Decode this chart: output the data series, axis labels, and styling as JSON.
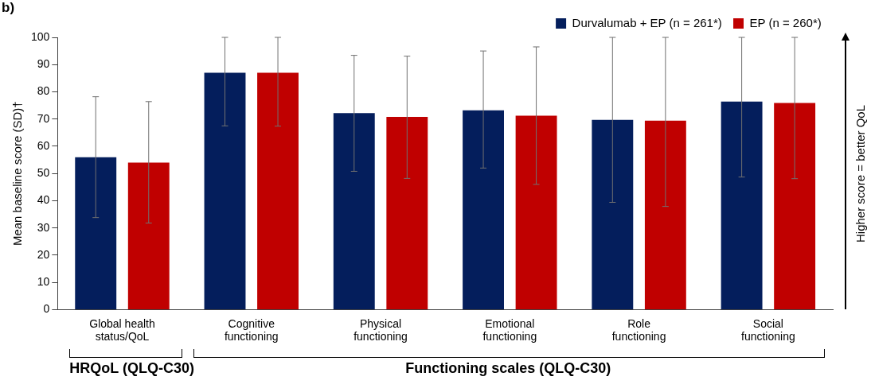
{
  "chart_data": {
    "type": "bar",
    "ylabel": "Mean baseline score (SD)†",
    "categories": [
      "Global health\nstatus/QoL",
      "Cognitive\nfunctioning",
      "Physical\nfunctioning",
      "Emotional\nfunctioning",
      "Role\nfunctioning",
      "Social\nfunctioning"
    ],
    "series": [
      {
        "name": "Durvalumab + EP (n = 261*)",
        "color": "#041e5c",
        "values": [
          56,
          87,
          72.2,
          73.2,
          69.7,
          76.4
        ],
        "errors": [
          [
            33.8,
            78.2
          ],
          [
            67.5,
            100
          ],
          [
            50.8,
            93.4
          ],
          [
            52,
            95
          ],
          [
            39.4,
            100
          ],
          [
            48.7,
            100
          ]
        ]
      },
      {
        "name": "EP (n = 260*)",
        "color": "#c00000",
        "values": [
          54,
          87,
          70.8,
          71.2,
          69.4,
          75.9
        ],
        "errors": [
          [
            31.8,
            76.4
          ],
          [
            67.4,
            100
          ],
          [
            48.2,
            93.1
          ],
          [
            46,
            96.5
          ],
          [
            37.9,
            100
          ],
          [
            48.1,
            100
          ]
        ]
      }
    ],
    "ylim": [
      0,
      100
    ],
    "yticks": [
      0,
      10,
      20,
      30,
      40,
      50,
      60,
      70,
      80,
      90,
      100
    ],
    "grid": false,
    "legend": "top right",
    "annotations": [
      "b)",
      "HRQoL (QLQ-C30)",
      "Functioning scales (QLQ-C30)",
      "Higher score = better QoL"
    ]
  }
}
